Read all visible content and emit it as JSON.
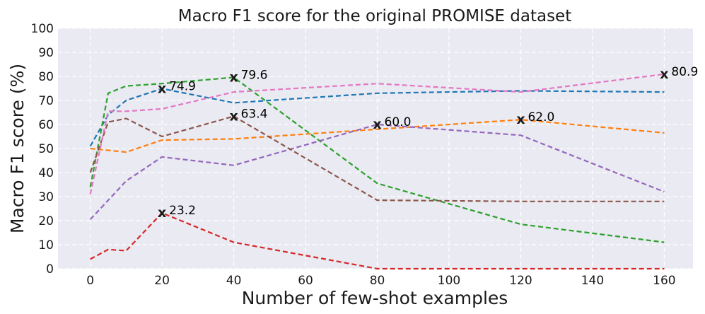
{
  "chart_data": {
    "type": "line",
    "title": "Macro F1 score for the original PROMISE dataset",
    "xlabel": "Number of few-shot examples",
    "ylabel": "Macro F1 score (%)",
    "xlim": [
      -9,
      168
    ],
    "ylim": [
      0,
      100
    ],
    "x_ticks": [
      0,
      20,
      40,
      60,
      80,
      100,
      120,
      140,
      160
    ],
    "y_ticks": [
      0,
      10,
      20,
      30,
      40,
      50,
      60,
      70,
      80,
      90,
      100
    ],
    "grid": true,
    "background": "#eaeaf2",
    "line_style": "dashed",
    "series": [
      {
        "color": "#1f77b4",
        "x": [
          0,
          5,
          10,
          20,
          40,
          80,
          120,
          160
        ],
        "y": [
          51,
          64,
          70,
          74.9,
          69,
          73,
          74,
          73.5
        ]
      },
      {
        "color": "#ff7f0e",
        "x": [
          0,
          10,
          20,
          40,
          80,
          120,
          160
        ],
        "y": [
          50,
          48.5,
          53.5,
          54,
          58,
          62.0,
          56.5
        ]
      },
      {
        "color": "#2ca02c",
        "x": [
          0,
          5,
          10,
          20,
          40,
          80,
          120,
          160
        ],
        "y": [
          34,
          73,
          76,
          77,
          79.6,
          35.5,
          18.5,
          11
        ]
      },
      {
        "color": "#d62728",
        "x": [
          0,
          5,
          10,
          20,
          40,
          80,
          120,
          160
        ],
        "y": [
          4,
          8,
          7.5,
          23.2,
          11,
          0,
          0,
          0
        ]
      },
      {
        "color": "#9467bd",
        "x": [
          0,
          10,
          20,
          40,
          80,
          120,
          160
        ],
        "y": [
          20.5,
          36.5,
          46.5,
          43,
          60.0,
          55.5,
          32
        ]
      },
      {
        "color": "#8c564b",
        "x": [
          0,
          5,
          10,
          20,
          40,
          80,
          120,
          160
        ],
        "y": [
          40,
          61,
          62.5,
          55,
          63.4,
          28.5,
          28,
          28
        ]
      },
      {
        "color": "#e377c2",
        "x": [
          0,
          5,
          10,
          20,
          40,
          80,
          120,
          160
        ],
        "y": [
          31,
          65.5,
          65.5,
          66.5,
          73.5,
          77,
          73.5,
          80.9
        ]
      }
    ],
    "annotations": [
      {
        "x": 20,
        "y": 74.9,
        "text": "74.9"
      },
      {
        "x": 40,
        "y": 79.6,
        "text": "79.6"
      },
      {
        "x": 40,
        "y": 63.4,
        "text": "63.4"
      },
      {
        "x": 80,
        "y": 60.0,
        "text": "60.0"
      },
      {
        "x": 120,
        "y": 62.0,
        "text": "62.0"
      },
      {
        "x": 160,
        "y": 80.9,
        "text": "80.9"
      },
      {
        "x": 20,
        "y": 23.2,
        "text": "23.2"
      }
    ],
    "marker_symbol": "x"
  }
}
